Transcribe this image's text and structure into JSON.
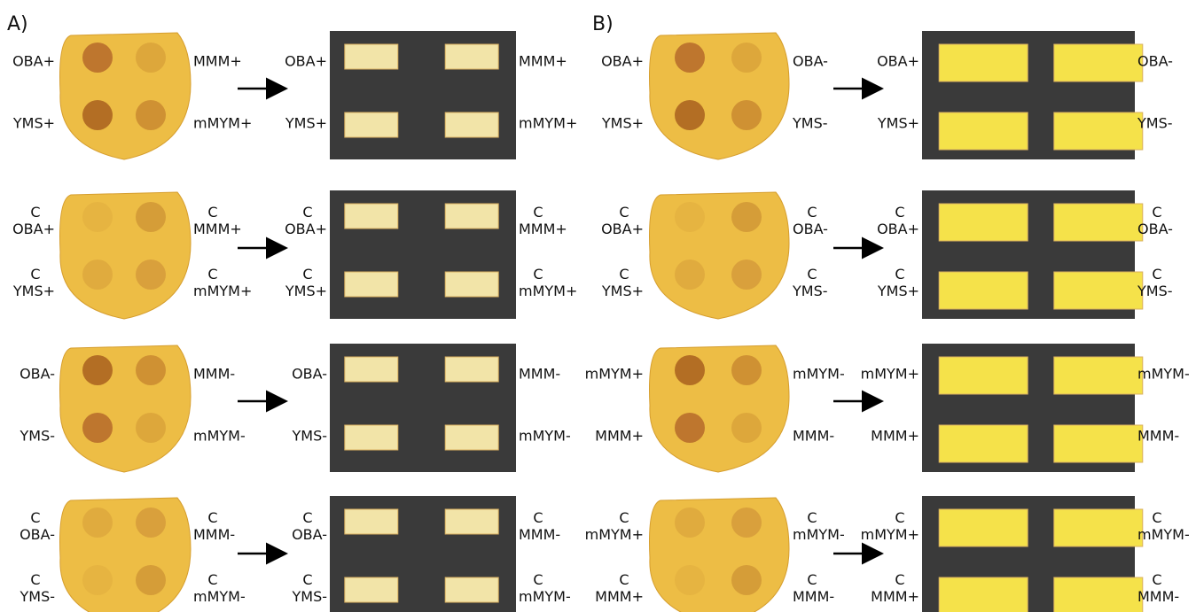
{
  "panels": [
    {
      "label": "A)",
      "rows": [
        {
          "slice_labels": [
            [
              "OBA+"
            ],
            [
              "MMM+"
            ],
            [
              "YMS+"
            ],
            [
              "mMYM+"
            ]
          ],
          "piece_labels": [
            [
              "OBA+"
            ],
            [
              "MMM+"
            ],
            [
              "YMS+"
            ],
            [
              "mMYM+"
            ]
          ]
        },
        {
          "slice_labels": [
            [
              "C",
              "OBA+"
            ],
            [
              "C",
              "MMM+"
            ],
            [
              "C",
              "YMS+"
            ],
            [
              "C",
              "mMYM+"
            ]
          ],
          "piece_labels": [
            [
              "C",
              "OBA+"
            ],
            [
              "C",
              "MMM+"
            ],
            [
              "C",
              "YMS+"
            ],
            [
              "C",
              "mMYM+"
            ]
          ]
        },
        {
          "slice_labels": [
            [
              "OBA-"
            ],
            [
              "MMM-"
            ],
            [
              "YMS-"
            ],
            [
              "mMYM-"
            ]
          ],
          "piece_labels": [
            [
              "OBA-"
            ],
            [
              "MMM-"
            ],
            [
              "YMS-"
            ],
            [
              "mMYM-"
            ]
          ]
        },
        {
          "slice_labels": [
            [
              "C",
              "OBA-"
            ],
            [
              "C",
              "MMM-"
            ],
            [
              "C",
              "YMS-"
            ],
            [
              "C",
              "mMYM-"
            ]
          ],
          "piece_labels": [
            [
              "C",
              "OBA-"
            ],
            [
              "C",
              "MMM-"
            ],
            [
              "C",
              "YMS-"
            ],
            [
              "C",
              "mMYM-"
            ]
          ]
        }
      ]
    },
    {
      "label": "B)",
      "rows": [
        {
          "slice_labels": [
            [
              "OBA+"
            ],
            [
              "OBA-"
            ],
            [
              "YMS+"
            ],
            [
              "YMS-"
            ]
          ],
          "piece_labels": [
            [
              "OBA+"
            ],
            [
              "OBA-"
            ],
            [
              "YMS+"
            ],
            [
              "YMS-"
            ]
          ]
        },
        {
          "slice_labels": [
            [
              "C",
              "OBA+"
            ],
            [
              "C",
              "OBA-"
            ],
            [
              "C",
              "YMS+"
            ],
            [
              "C",
              "YMS-"
            ]
          ],
          "piece_labels": [
            [
              "C",
              "OBA+"
            ],
            [
              "C",
              "OBA-"
            ],
            [
              "C",
              "YMS+"
            ],
            [
              "C",
              "YMS-"
            ]
          ]
        },
        {
          "slice_labels": [
            [
              "mMYM+"
            ],
            [
              "mMYM-"
            ],
            [
              "MMM+"
            ],
            [
              "MMM-"
            ]
          ],
          "piece_labels": [
            [
              "mMYM+"
            ],
            [
              "mMYM-"
            ],
            [
              "MMM+"
            ],
            [
              "MMM-"
            ]
          ]
        },
        {
          "slice_labels": [
            [
              "C",
              "mMYM+"
            ],
            [
              "C",
              "mMYM-"
            ],
            [
              "C",
              "MMM+"
            ],
            [
              "C",
              "MMM-"
            ]
          ],
          "piece_labels": [
            [
              "C",
              "mMYM+"
            ],
            [
              "C",
              "mMYM-"
            ],
            [
              "C",
              "MMM+"
            ],
            [
              "C",
              "MMM-"
            ]
          ]
        }
      ]
    }
  ]
}
